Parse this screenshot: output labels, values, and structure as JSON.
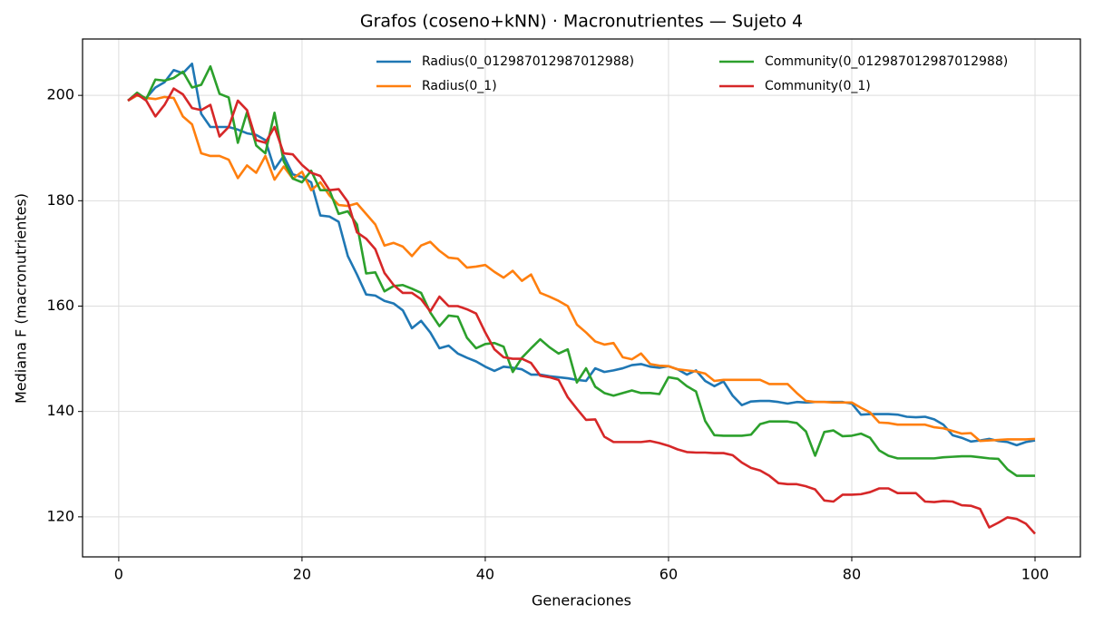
{
  "chart_data": {
    "type": "line",
    "title": "Grafos (coseno+kNN) · Macronutrientes — Sujeto 4",
    "xlabel": "Generaciones",
    "ylabel": "Mediana F (macronutrientes)",
    "xlim": [
      -3.95,
      104.95
    ],
    "ylim": [
      112.4,
      210.7
    ],
    "xticks": [
      0,
      20,
      40,
      60,
      80,
      100
    ],
    "yticks": [
      120,
      140,
      160,
      180,
      200
    ],
    "grid": true,
    "legend": "upper right",
    "x": [
      1,
      2,
      3,
      4,
      5,
      6,
      7,
      8,
      9,
      10,
      11,
      12,
      13,
      14,
      15,
      16,
      17,
      18,
      19,
      20,
      21,
      22,
      23,
      24,
      25,
      26,
      27,
      28,
      29,
      30,
      31,
      32,
      33,
      34,
      35,
      36,
      37,
      38,
      39,
      40,
      41,
      42,
      43,
      44,
      45,
      46,
      47,
      48,
      49,
      50,
      51,
      52,
      53,
      54,
      55,
      56,
      57,
      58,
      59,
      60,
      61,
      62,
      63,
      64,
      65,
      66,
      67,
      68,
      69,
      70,
      71,
      72,
      73,
      74,
      75,
      76,
      77,
      78,
      79,
      80,
      81,
      82,
      83,
      84,
      85,
      86,
      87,
      88,
      89,
      90,
      91,
      92,
      93,
      94,
      95,
      96,
      97,
      98,
      99,
      100
    ],
    "series": [
      {
        "name": "Radius(0_012987012987012988)",
        "color": "#1f77b4",
        "values": [
          199,
          200,
          199.5,
          201.5,
          202.5,
          204.8,
          204.2,
          206,
          196.5,
          194,
          194,
          194,
          193.5,
          192.8,
          192.5,
          191.5,
          186,
          188.5,
          185,
          184.5,
          183.5,
          177.2,
          177,
          176,
          169.5,
          166,
          162.2,
          162,
          161,
          160.5,
          159.2,
          155.8,
          157.2,
          155,
          152,
          152.5,
          151,
          150.2,
          149.5,
          148.5,
          147.7,
          148.5,
          148.3,
          148,
          147,
          147,
          146.7,
          146.5,
          146.3,
          146,
          145.8,
          148.2,
          147.5,
          147.8,
          148.2,
          148.8,
          149,
          148.5,
          148.3,
          148.6,
          148,
          147,
          147.8,
          145.8,
          144.8,
          145.7,
          143,
          141.2,
          141.9,
          142,
          142,
          141.8,
          141.5,
          141.8,
          141.7,
          141.8,
          141.8,
          141.8,
          141.8,
          141.5,
          139.4,
          139.5,
          139.5,
          139.5,
          139.4,
          139,
          138.9,
          139,
          138.5,
          137.5,
          135.5,
          135,
          134.3,
          134.5,
          134.8,
          134.4,
          134.2,
          133.6,
          134.2,
          134.5
        ]
      },
      {
        "name": "Radius(0_1)",
        "color": "#ff7f0e",
        "values": [
          199,
          200,
          199.5,
          199.3,
          199.7,
          199.5,
          196,
          194.5,
          189,
          188.5,
          188.5,
          187.8,
          184.3,
          186.7,
          185.3,
          188.5,
          184,
          186.5,
          184.2,
          185.5,
          182,
          183.5,
          181,
          179.2,
          179,
          179.5,
          177.5,
          175.5,
          171.5,
          172,
          171.3,
          169.5,
          171.5,
          172.2,
          170.5,
          169.2,
          169,
          167.3,
          167.5,
          167.8,
          166.5,
          165.4,
          166.7,
          164.8,
          166,
          162.5,
          161.8,
          161,
          160,
          156.5,
          155,
          153.3,
          152.7,
          153,
          150.3,
          149.9,
          151,
          149,
          148.7,
          148.6,
          148,
          147.8,
          147.6,
          147.2,
          145.8,
          146,
          146,
          146,
          146,
          146,
          145.2,
          145.2,
          145.2,
          143.5,
          142,
          141.8,
          141.8,
          141.7,
          141.7,
          141.7,
          140.7,
          139.8,
          137.9,
          137.8,
          137.5,
          137.5,
          137.5,
          137.5,
          137,
          136.8,
          136.3,
          135.8,
          135.9,
          134.4,
          134.5,
          134.6,
          134.7,
          134.7,
          134.7,
          134.8
        ]
      },
      {
        "name": "Community(0_012987012987012988)",
        "color": "#2ca02c",
        "values": [
          199,
          200.5,
          199.3,
          203,
          202.8,
          203.3,
          204.5,
          201.5,
          202,
          205.5,
          200.3,
          199.6,
          191,
          196.8,
          190.5,
          189,
          196.7,
          187.5,
          184.2,
          183.5,
          185.7,
          182,
          182,
          177.5,
          178,
          175.5,
          166.2,
          166.4,
          162.8,
          163.8,
          164,
          163.3,
          162.5,
          158.8,
          156.2,
          158.2,
          158,
          154,
          152,
          152.8,
          153,
          152.3,
          147.5,
          150.2,
          152,
          153.7,
          152.2,
          151,
          151.8,
          145.5,
          148.2,
          144.7,
          143.5,
          143,
          143.5,
          144,
          143.5,
          143.5,
          143.3,
          146.5,
          146.2,
          144.8,
          143.8,
          138.2,
          135.5,
          135.4,
          135.4,
          135.4,
          135.6,
          137.6,
          138.1,
          138.1,
          138.1,
          137.8,
          136.2,
          131.6,
          136.1,
          136.4,
          135.3,
          135.4,
          135.8,
          135,
          132.6,
          131.6,
          131.1,
          131.1,
          131.1,
          131.1,
          131.1,
          131.3,
          131.4,
          131.5,
          131.5,
          131.3,
          131.1,
          131,
          129,
          127.8,
          127.8,
          127.8
        ]
      },
      {
        "name": "Community(0_1)",
        "color": "#d62728",
        "values": [
          199,
          200.2,
          199,
          196,
          198.2,
          201.3,
          200.2,
          197.6,
          197.2,
          198.2,
          192.2,
          194,
          199,
          197.2,
          191.5,
          191,
          194,
          189,
          188.8,
          186.8,
          185.3,
          184.7,
          182,
          182.2,
          179.8,
          174,
          172.8,
          170.8,
          166.3,
          164,
          162.5,
          162.5,
          161.3,
          159,
          161.8,
          160,
          160,
          159.4,
          158.6,
          155,
          151.8,
          150.3,
          150,
          150,
          149.2,
          146.8,
          146.5,
          146,
          142.7,
          140.5,
          138.4,
          138.5,
          135.2,
          134.2,
          134.2,
          134.2,
          134.2,
          134.4,
          134,
          133.5,
          132.8,
          132.3,
          132.2,
          132.2,
          132.1,
          132.1,
          131.7,
          130.3,
          129.3,
          128.8,
          127.8,
          126.4,
          126.2,
          126.2,
          125.8,
          125.2,
          123.1,
          122.9,
          124.2,
          124.2,
          124.3,
          124.7,
          125.4,
          125.4,
          124.5,
          124.5,
          124.5,
          122.9,
          122.8,
          123,
          122.9,
          122.2,
          122.1,
          121.5,
          118,
          118.9,
          119.9,
          119.6,
          118.7,
          116.8
        ]
      }
    ]
  }
}
